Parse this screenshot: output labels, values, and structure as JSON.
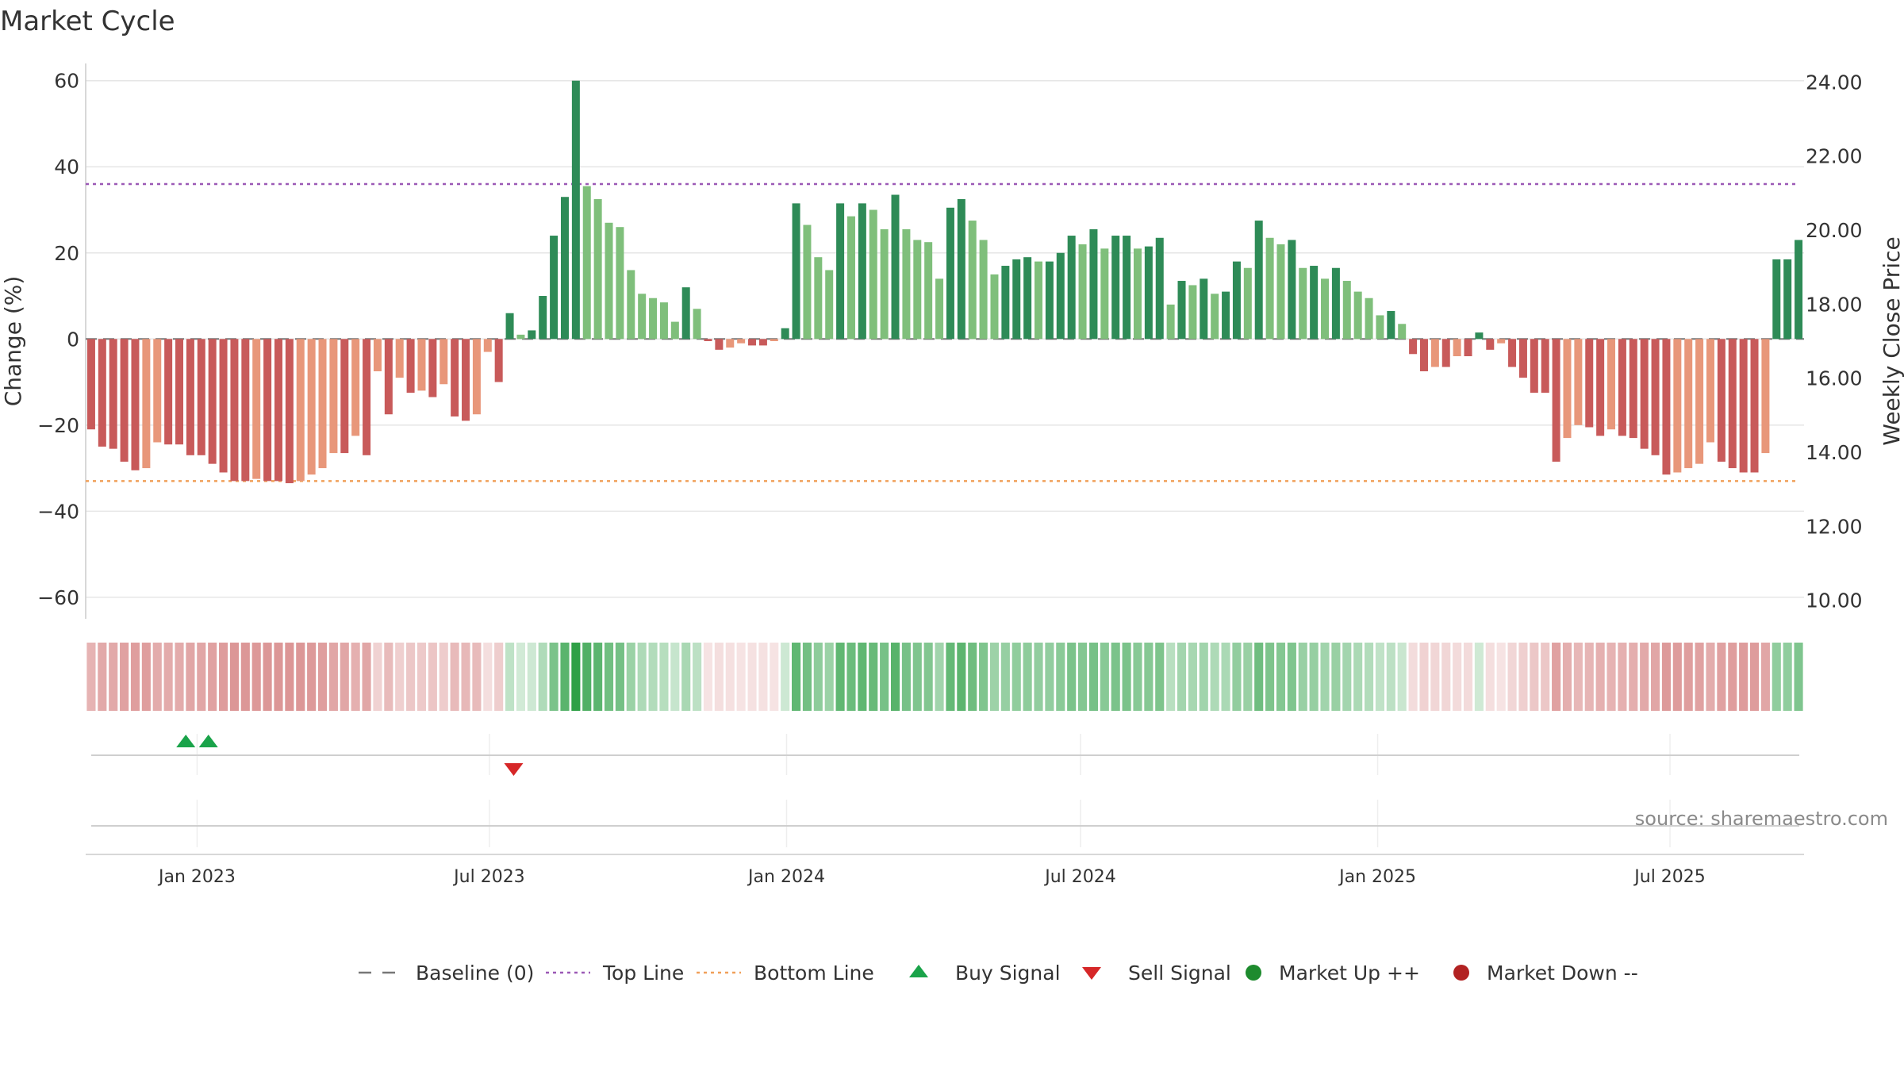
{
  "chart_data": {
    "type": "bar",
    "title": "Market Cycle",
    "ylabel_left": "Change (%)",
    "ylabel_right": "Weekly Close Price",
    "ylim_left": [
      -65,
      64
    ],
    "yticks_left": [
      "60",
      "40",
      "20",
      "0",
      "−20",
      "−40",
      "−60"
    ],
    "yticks_left_values": [
      60,
      40,
      20,
      0,
      -20,
      -40,
      -60
    ],
    "ylim_right": [
      9.5,
      24.5
    ],
    "yticks_right": [
      "24.00",
      "22.00",
      "20.00",
      "18.00",
      "16.00",
      "14.00",
      "12.00",
      "10.00"
    ],
    "yticks_right_values": [
      24,
      22,
      20,
      18,
      16,
      14,
      12,
      10
    ],
    "x_start": "2022-10-24",
    "x_end": "2025-09-22",
    "xticks": [
      "Jan 2023",
      "Jul 2023",
      "Jan 2024",
      "Jul 2024",
      "Jan 2025",
      "Jul 2025"
    ],
    "xticks_dates": [
      "2023-01-01",
      "2023-07-01",
      "2024-01-01",
      "2024-07-01",
      "2025-01-01",
      "2025-07-01"
    ],
    "top_line": 36,
    "bottom_line": -33,
    "grid": true,
    "legend_position": "bottom",
    "values": [
      -21,
      -25,
      -25.5,
      -28.5,
      -30.5,
      -30,
      -24,
      -24.5,
      -24.5,
      -27,
      -27,
      -29,
      -31,
      -33,
      -33,
      -32.5,
      -33,
      -33,
      -33.5,
      -33,
      -31.5,
      -30,
      -26.5,
      -26.5,
      -22.5,
      -27,
      -7.5,
      -17.5,
      -9,
      -12.5,
      -12,
      -13.5,
      -10.5,
      -18,
      -19,
      -17.5,
      -3,
      -10,
      6,
      1,
      2,
      10,
      24,
      33,
      60,
      35.5,
      32.5,
      27,
      26,
      16,
      10.5,
      9.5,
      8.5,
      4,
      12,
      7,
      -0.5,
      -2.5,
      -2,
      -1,
      -1.5,
      -1.5,
      -0.5,
      2.5,
      31.5,
      26.5,
      19,
      16,
      31.5,
      28.5,
      31.5,
      30,
      25.5,
      33.5,
      25.5,
      23,
      22.5,
      14,
      30.5,
      32.5,
      27.5,
      23,
      15,
      17,
      18.5,
      19,
      18,
      18,
      20,
      24,
      22,
      25.5,
      21,
      24,
      24,
      21,
      21.5,
      23.5,
      8,
      13.5,
      12.5,
      14,
      10.5,
      11,
      18,
      16.5,
      27.5,
      23.5,
      22,
      23,
      16.5,
      17,
      14,
      16.5,
      13.5,
      11,
      9.5,
      5.5,
      6.5,
      3.5,
      -3.5,
      -7.5,
      -6.5,
      -6.5,
      -4,
      -4,
      1.5,
      -2.5,
      -1,
      -6.5,
      -9,
      -12.5,
      -12.5,
      -28.5,
      -23,
      -20,
      -20.5,
      -22.5,
      -21,
      -22.5,
      -23,
      -25.5,
      -27,
      -31.5,
      -31,
      -30,
      -29,
      -24,
      -28.5,
      -30,
      -31,
      -31,
      -26.5,
      18.5,
      18.5,
      23
    ],
    "signals": [
      {
        "type": "buy",
        "date": "2022-12-25"
      },
      {
        "type": "buy",
        "date": "2023-01-08"
      },
      {
        "type": "sell",
        "date": "2023-07-16"
      }
    ],
    "annotation": "source: sharemaestro.com",
    "legend": [
      {
        "key": "baseline",
        "label": "Baseline (0)"
      },
      {
        "key": "top",
        "label": "Top Line"
      },
      {
        "key": "bottom",
        "label": "Bottom Line"
      },
      {
        "key": "buy",
        "label": "Buy Signal"
      },
      {
        "key": "sell",
        "label": "Sell Signal"
      },
      {
        "key": "up",
        "label": "Market Up ++"
      },
      {
        "key": "down",
        "label": "Market Down --"
      }
    ],
    "colors": {
      "up_strong": "#2e8b57",
      "up_weak": "#7fbf7b",
      "down_strong": "#c85a5a",
      "down_weak": "#e8977a",
      "top_line": "#9b59b6",
      "bottom_line": "#f0a05a",
      "baseline": "#777777",
      "buy": "#1aa34a",
      "sell": "#d62728",
      "market_up": "#1e8b2e",
      "market_down": "#b22222"
    }
  }
}
